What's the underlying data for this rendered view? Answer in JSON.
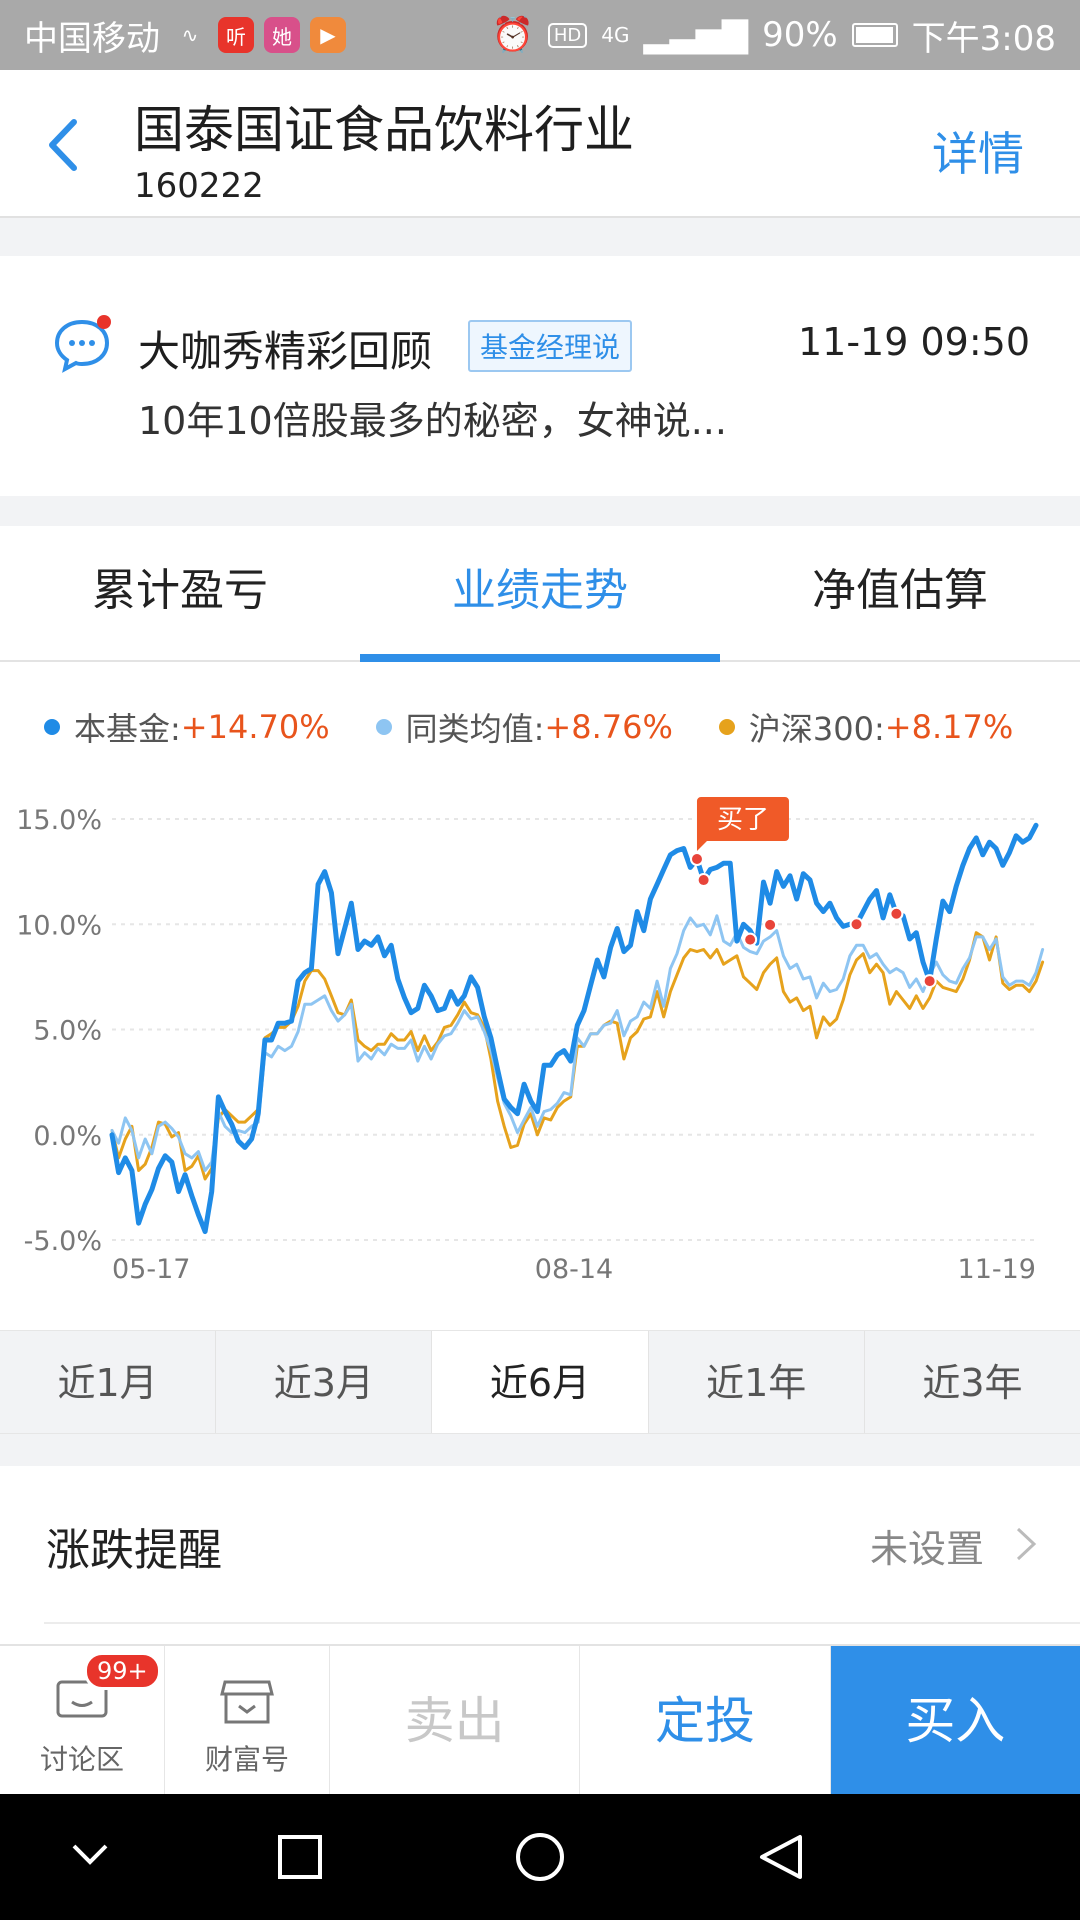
{
  "status_bar": {
    "carrier": "中国移动",
    "app_icons": [
      {
        "name": "activity-icon",
        "glyph": "∿",
        "color": "#a9a9a9"
      },
      {
        "name": "ting-app-icon",
        "glyph": "听",
        "color": "#e8342b"
      },
      {
        "name": "ta-app-icon",
        "glyph": "她",
        "color": "#d8508a"
      },
      {
        "name": "video-app-icon",
        "glyph": "▶",
        "color": "#f08a3c"
      }
    ],
    "hd": "HD",
    "network": "4G",
    "battery": "90%",
    "time": "下午3:08"
  },
  "header": {
    "title": "国泰国证食品饮料行业",
    "code": "160222",
    "detail": "详情"
  },
  "news": {
    "title": "大咖秀精彩回顾",
    "tag": "基金经理说",
    "time": "11-19 09:50",
    "subtitle": "10年10倍股最多的秘密，女神说..."
  },
  "tabs": [
    {
      "label": "累计盈亏",
      "active": false
    },
    {
      "label": "业绩走势",
      "active": true
    },
    {
      "label": "净值估算",
      "active": false
    }
  ],
  "legend": [
    {
      "label": "本基金: ",
      "value": "+14.70%",
      "color": "#1f8be6"
    },
    {
      "label": "同类均值: ",
      "value": "+8.76%",
      "color": "#8ec5f2"
    },
    {
      "label": "沪深300: ",
      "value": "+8.17%",
      "color": "#e6a21c"
    }
  ],
  "chart_data": {
    "type": "line",
    "x_tick_labels": [
      "05-17",
      "08-14",
      "11-19"
    ],
    "y_tick_labels": [
      "15.0%",
      "10.0%",
      "5.0%",
      "0.0%",
      "-5.0%"
    ],
    "ylim": [
      -5,
      15
    ],
    "grid": true,
    "marker_label": "买了",
    "marker_indices": [
      88,
      89,
      96,
      99,
      112,
      118,
      123
    ],
    "series": [
      {
        "name": "本基金",
        "color": "#1f8be6",
        "width": 5,
        "values": [
          0.0,
          -1.8,
          -1.1,
          -1.7,
          -4.2,
          -3.3,
          -2.6,
          -1.6,
          -1.0,
          -1.3,
          -2.7,
          -1.9,
          -2.9,
          -3.8,
          -4.6,
          -2.7,
          1.8,
          1.1,
          0.5,
          -0.3,
          -0.6,
          -0.2,
          1.0,
          4.5,
          4.5,
          5.3,
          5.3,
          5.4,
          7.3,
          7.7,
          7.9,
          11.9,
          12.5,
          11.5,
          8.6,
          9.8,
          11.0,
          8.8,
          9.2,
          9.0,
          9.4,
          8.5,
          9.0,
          7.4,
          6.5,
          5.8,
          6.0,
          7.1,
          6.6,
          5.9,
          6.0,
          6.8,
          6.2,
          6.6,
          7.5,
          7.0,
          5.6,
          4.6,
          3.1,
          1.7,
          1.3,
          1.0,
          2.4,
          1.6,
          1.1,
          3.3,
          3.3,
          3.8,
          4.0,
          3.5,
          5.2,
          5.9,
          7.1,
          8.3,
          7.5,
          8.9,
          9.8,
          8.7,
          9.0,
          10.6,
          9.7,
          11.2,
          11.9,
          12.6,
          13.3,
          13.5,
          13.6,
          12.7,
          13.1,
          12.1,
          12.6,
          12.7,
          12.9,
          12.9,
          9.2,
          10.0,
          9.7,
          9.1,
          12.0,
          11.0,
          12.5,
          11.8,
          12.3,
          11.2,
          12.4,
          12.1,
          11.0,
          10.6,
          11.0,
          10.3,
          9.9,
          10.0,
          10.0,
          10.6,
          11.2,
          11.6,
          10.3,
          11.4,
          10.5,
          10.4,
          9.3,
          9.6,
          8.2,
          7.3,
          9.3,
          11.1,
          10.6,
          11.8,
          12.8,
          13.6,
          14.1,
          13.3,
          13.9,
          13.6,
          12.8,
          13.4,
          14.2,
          13.9,
          14.1,
          14.7
        ]
      },
      {
        "name": "同类均值",
        "color": "#8ec5f2",
        "width": 3,
        "values": [
          0.2,
          -0.4,
          0.8,
          0.2,
          -1.1,
          -0.2,
          -0.9,
          0.4,
          0.6,
          0.3,
          -0.1,
          -0.9,
          -1.1,
          -0.8,
          -1.7,
          -1.3,
          1.1,
          0.4,
          0.1,
          0.2,
          0.1,
          0.4,
          0.6,
          3.9,
          3.7,
          4.2,
          4.0,
          4.2,
          4.9,
          6.2,
          6.2,
          6.4,
          6.6,
          5.9,
          5.4,
          5.7,
          6.2,
          3.5,
          3.9,
          3.6,
          4.1,
          3.8,
          4.3,
          4.1,
          4.1,
          4.5,
          3.5,
          4.2,
          3.6,
          4.3,
          4.7,
          4.8,
          5.3,
          5.9,
          5.5,
          5.6,
          4.9,
          4.0,
          2.7,
          1.5,
          0.9,
          0.1,
          0.7,
          1.3,
          0.4,
          1.1,
          1.2,
          1.5,
          2.0,
          1.9,
          4.6,
          4.2,
          4.8,
          4.8,
          5.2,
          5.3,
          5.9,
          4.7,
          5.4,
          5.6,
          6.3,
          6.0,
          7.3,
          6.1,
          7.9,
          8.6,
          9.7,
          10.3,
          9.9,
          10.0,
          9.5,
          10.4,
          9.2,
          9.0,
          9.6,
          8.9,
          8.7,
          8.6,
          9.2,
          9.4,
          9.7,
          8.5,
          7.9,
          8.1,
          7.4,
          7.5,
          6.5,
          7.2,
          6.8,
          6.9,
          7.4,
          8.5,
          9.0,
          9.0,
          8.4,
          8.6,
          8.1,
          7.7,
          7.9,
          7.7,
          7.0,
          7.4,
          6.8,
          7.6,
          8.2,
          7.6,
          7.3,
          7.2,
          7.9,
          8.4,
          9.4,
          9.4,
          8.8,
          9.3,
          7.5,
          7.1,
          7.3,
          7.3,
          7.1,
          7.7,
          8.8
        ]
      },
      {
        "name": "沪深300",
        "color": "#e6a21c",
        "width": 3,
        "values": [
          0.2,
          -1.1,
          -0.2,
          0.4,
          -1.7,
          -1.4,
          -0.6,
          0.6,
          0.5,
          -0.1,
          0.1,
          -1.7,
          -1.5,
          -1.0,
          -2.1,
          -1.6,
          0.8,
          1.2,
          0.9,
          0.6,
          0.6,
          0.9,
          1.2,
          4.6,
          4.8,
          5.1,
          5.1,
          5.4,
          6.1,
          7.3,
          7.8,
          7.8,
          7.4,
          6.6,
          5.8,
          5.7,
          6.4,
          4.5,
          4.2,
          4.0,
          4.3,
          4.3,
          4.8,
          4.5,
          4.5,
          4.9,
          4.0,
          4.7,
          4.0,
          4.4,
          5.1,
          5.2,
          5.7,
          6.3,
          5.8,
          5.7,
          5.1,
          3.6,
          1.6,
          0.4,
          -0.6,
          -0.5,
          0.5,
          1.0,
          0.0,
          0.8,
          0.7,
          1.3,
          1.6,
          1.8,
          4.2,
          4.2,
          4.8,
          4.8,
          5.2,
          5.4,
          5.3,
          3.6,
          4.6,
          4.9,
          5.5,
          5.6,
          6.8,
          5.6,
          6.8,
          7.6,
          8.4,
          8.8,
          8.7,
          8.8,
          8.4,
          8.8,
          8.1,
          8.3,
          8.5,
          7.5,
          7.2,
          6.9,
          7.7,
          8.1,
          8.4,
          6.8,
          6.3,
          6.5,
          5.9,
          6.1,
          4.6,
          5.6,
          5.2,
          5.5,
          6.4,
          7.6,
          8.3,
          8.6,
          7.7,
          8.1,
          7.7,
          6.2,
          6.8,
          6.4,
          6.0,
          6.6,
          6.0,
          6.5,
          7.3,
          7.0,
          6.9,
          6.8,
          7.4,
          8.3,
          9.6,
          9.4,
          8.3,
          9.4,
          7.2,
          6.9,
          7.1,
          7.1,
          6.8,
          7.3,
          8.2
        ]
      }
    ]
  },
  "periods": [
    {
      "label": "近1月",
      "active": false
    },
    {
      "label": "近3月",
      "active": false
    },
    {
      "label": "近6月",
      "active": true
    },
    {
      "label": "近1年",
      "active": false
    },
    {
      "label": "近3年",
      "active": false
    }
  ],
  "reminder": {
    "title": "涨跌提醒",
    "value": "未设置"
  },
  "bottom_bar": {
    "discuss_label": "讨论区",
    "discuss_badge": "99+",
    "wealth_label": "财富号",
    "sell": "卖出",
    "plan": "定投",
    "buy": "买入"
  }
}
